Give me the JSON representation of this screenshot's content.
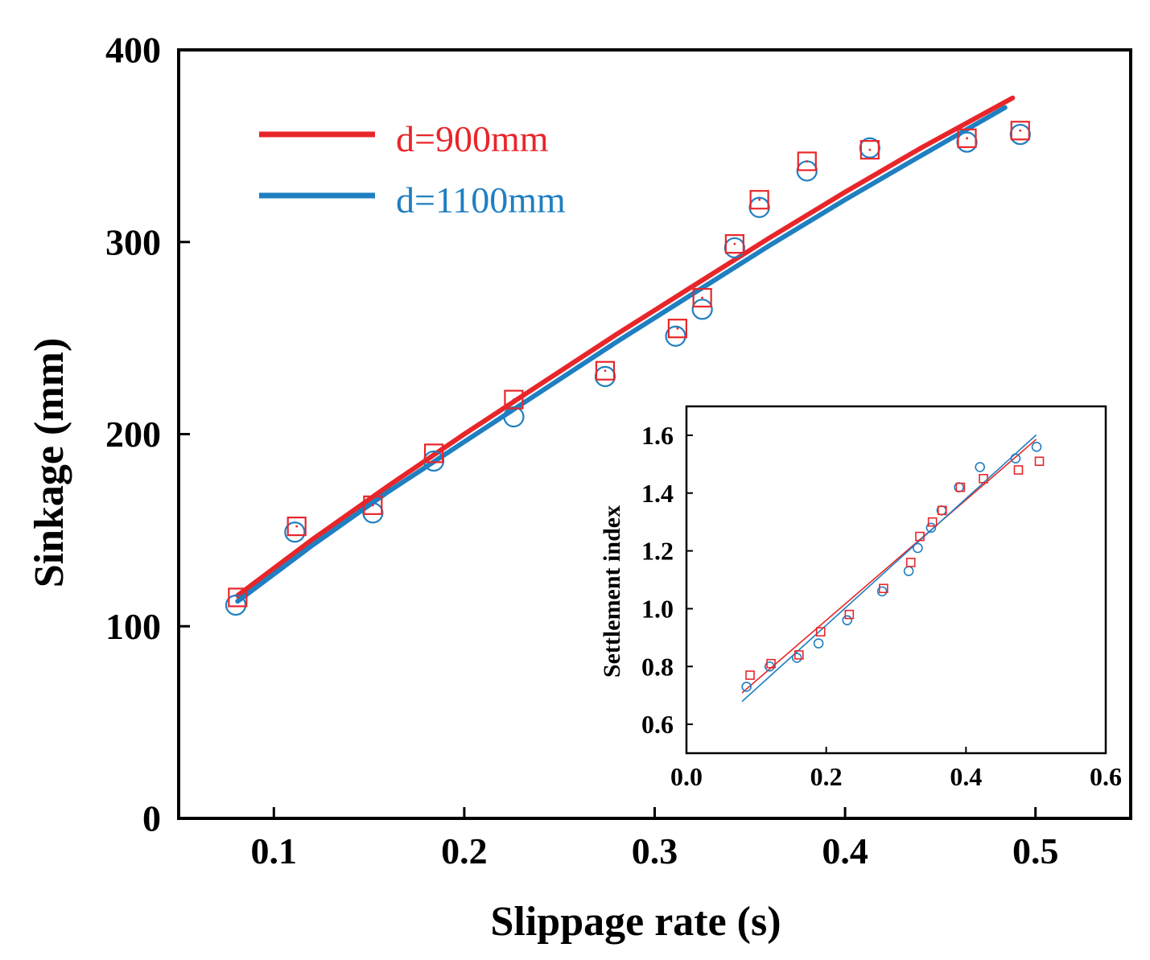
{
  "colors": {
    "series_900": "#e8262a",
    "series_1100": "#1f7fc1",
    "axis": "#000000"
  },
  "chart_data": [
    {
      "id": "main",
      "type": "scatter",
      "xlabel": "Slippage rate (s)",
      "ylabel": "Sinkage (mm)",
      "xlim": [
        0.05,
        0.55
      ],
      "ylim": [
        0,
        400
      ],
      "xticks": [
        0.1,
        0.2,
        0.3,
        0.4,
        0.5
      ],
      "xtick_labels": [
        "0.1",
        "0.2",
        "0.3",
        "0.4",
        "0.5"
      ],
      "yticks": [
        0,
        100,
        200,
        300,
        400
      ],
      "ytick_labels": [
        "0",
        "100",
        "200",
        "300",
        "400"
      ],
      "legend": [
        "d=900mm",
        "d=1100mm"
      ],
      "legend_position": "top-left",
      "series": [
        {
          "name": "d=900mm",
          "marker": "square",
          "color": "#e8262a",
          "points": [
            [
              0.081,
              115
            ],
            [
              0.112,
              152
            ],
            [
              0.152,
              163
            ],
            [
              0.184,
              190
            ],
            [
              0.226,
              218
            ],
            [
              0.274,
              233
            ],
            [
              0.312,
              255
            ],
            [
              0.325,
              271
            ],
            [
              0.342,
              299
            ],
            [
              0.355,
              322
            ],
            [
              0.38,
              342
            ],
            [
              0.413,
              348
            ],
            [
              0.464,
              354
            ],
            [
              0.492,
              358
            ]
          ],
          "fit": [
            [
              0.081,
              116
            ],
            [
              0.12,
              145
            ],
            [
              0.16,
              173
            ],
            [
              0.2,
              200
            ],
            [
              0.24,
              226
            ],
            [
              0.28,
              252
            ],
            [
              0.32,
              277
            ],
            [
              0.36,
              302
            ],
            [
              0.4,
              326
            ],
            [
              0.44,
              349
            ],
            [
              0.488,
              375
            ]
          ]
        },
        {
          "name": "d=1100mm",
          "marker": "circle",
          "color": "#1f7fc1",
          "points": [
            [
              0.08,
              111
            ],
            [
              0.111,
              149
            ],
            [
              0.152,
              159
            ],
            [
              0.184,
              186
            ],
            [
              0.226,
              209
            ],
            [
              0.274,
              230
            ],
            [
              0.311,
              251
            ],
            [
              0.325,
              265
            ],
            [
              0.342,
              297
            ],
            [
              0.355,
              318
            ],
            [
              0.38,
              337
            ],
            [
              0.413,
              349
            ],
            [
              0.464,
              352
            ],
            [
              0.492,
              356
            ]
          ],
          "fit": [
            [
              0.081,
              113
            ],
            [
              0.12,
              142
            ],
            [
              0.16,
              170
            ],
            [
              0.2,
              196
            ],
            [
              0.24,
              222
            ],
            [
              0.28,
              248
            ],
            [
              0.32,
              273
            ],
            [
              0.36,
              298
            ],
            [
              0.4,
              322
            ],
            [
              0.44,
              345
            ],
            [
              0.484,
              370
            ]
          ]
        }
      ]
    },
    {
      "id": "inset",
      "type": "scatter",
      "xlabel": "",
      "ylabel": "Settlement index",
      "xlim": [
        0.0,
        0.6
      ],
      "ylim": [
        0.5,
        1.7
      ],
      "xticks": [
        0.0,
        0.2,
        0.4,
        0.6
      ],
      "xtick_labels": [
        "0.0",
        "0.2",
        "0.4",
        "0.6"
      ],
      "yticks": [
        0.6,
        0.8,
        1.0,
        1.2,
        1.4,
        1.6
      ],
      "ytick_labels": [
        "0.6",
        "0.8",
        "1.0",
        "1.2",
        "1.4",
        "1.6"
      ],
      "series": [
        {
          "name": "d=900mm",
          "marker": "square",
          "color": "#e8262a",
          "points": [
            [
              0.091,
              0.77
            ],
            [
              0.121,
              0.81
            ],
            [
              0.161,
              0.84
            ],
            [
              0.192,
              0.92
            ],
            [
              0.233,
              0.98
            ],
            [
              0.282,
              1.07
            ],
            [
              0.321,
              1.16
            ],
            [
              0.334,
              1.25
            ],
            [
              0.352,
              1.3
            ],
            [
              0.366,
              1.34
            ],
            [
              0.392,
              1.42
            ],
            [
              0.425,
              1.45
            ],
            [
              0.475,
              1.48
            ],
            [
              0.505,
              1.51
            ]
          ],
          "fit": [
            [
              0.08,
              0.71
            ],
            [
              0.5,
              1.585
            ]
          ]
        },
        {
          "name": "d=1100mm",
          "marker": "circle",
          "color": "#1f7fc1",
          "points": [
            [
              0.086,
              0.73
            ],
            [
              0.119,
              0.8
            ],
            [
              0.158,
              0.83
            ],
            [
              0.189,
              0.88
            ],
            [
              0.23,
              0.96
            ],
            [
              0.28,
              1.06
            ],
            [
              0.318,
              1.13
            ],
            [
              0.331,
              1.21
            ],
            [
              0.35,
              1.28
            ],
            [
              0.365,
              1.34
            ],
            [
              0.39,
              1.42
            ],
            [
              0.42,
              1.49
            ],
            [
              0.471,
              1.52
            ],
            [
              0.501,
              1.56
            ]
          ],
          "fit": [
            [
              0.08,
              0.68
            ],
            [
              0.5,
              1.6
            ]
          ]
        }
      ]
    }
  ]
}
